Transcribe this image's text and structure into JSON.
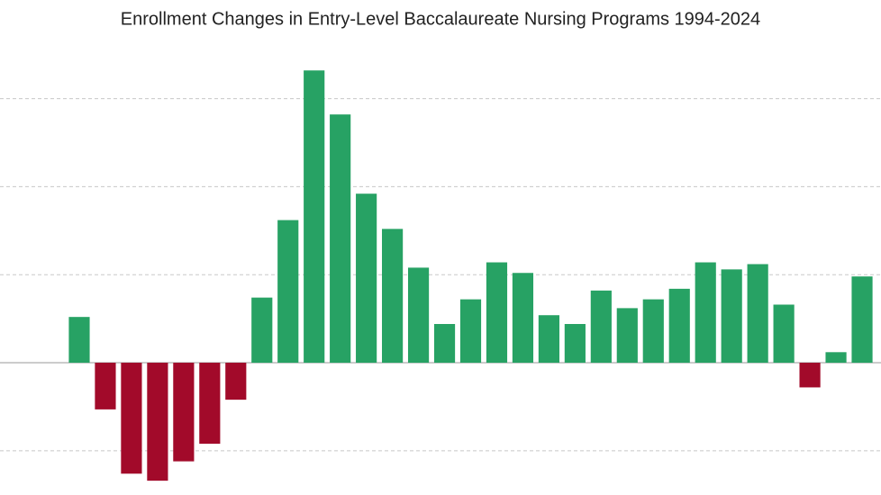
{
  "chart_data": {
    "type": "bar",
    "title": "Enrollment Changes in Entry-Level Baccalaureate Nursing Programs 1994-2024",
    "values": [
      2.6,
      -2.65,
      -6.3,
      -6.7,
      -5.6,
      -4.6,
      -2.1,
      3.7,
      8.1,
      16.6,
      14.1,
      9.6,
      7.6,
      5.4,
      2.2,
      3.6,
      5.7,
      5.1,
      2.7,
      2.2,
      4.1,
      3.1,
      3.6,
      4.2,
      5.7,
      5.3,
      5.6,
      3.3,
      -1.4,
      0.6,
      4.9
    ],
    "positive_color": "#27a264",
    "negative_color": "#a20a2a",
    "ylim": [
      -7,
      18.3
    ],
    "yticks": [
      -5,
      0,
      5,
      10,
      15
    ],
    "grid": true
  }
}
